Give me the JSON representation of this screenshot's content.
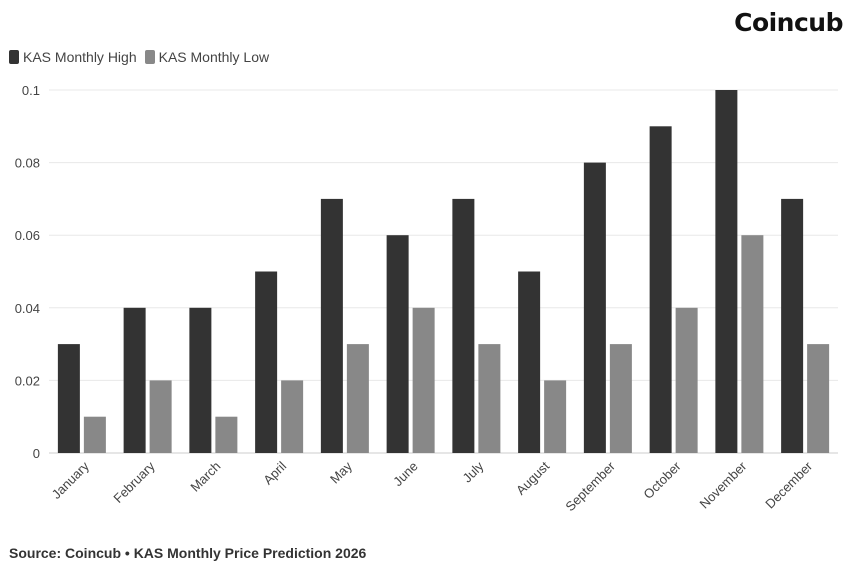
{
  "brand": "Coincub",
  "source_text": "Source: Coincub • KAS Monthly Price Prediction 2026",
  "chart_data": {
    "type": "bar",
    "title": "",
    "xlabel": "",
    "ylabel": "",
    "ylim": [
      0,
      0.1
    ],
    "y_ticks": [
      "0",
      "0.02",
      "0.04",
      "0.06",
      "0.08",
      "0.1"
    ],
    "y_tick_values": [
      0,
      0.02,
      0.04,
      0.06,
      0.08,
      0.1
    ],
    "grid": true,
    "legend_position": "top-left",
    "categories": [
      "January",
      "February",
      "March",
      "April",
      "May",
      "June",
      "July",
      "August",
      "September",
      "October",
      "November",
      "December"
    ],
    "series": [
      {
        "name": "KAS Monthly High",
        "color": "#333333",
        "values": [
          0.03,
          0.04,
          0.04,
          0.05,
          0.07,
          0.06,
          0.07,
          0.05,
          0.08,
          0.09,
          0.1,
          0.07
        ]
      },
      {
        "name": "KAS Monthly Low",
        "color": "#888888",
        "values": [
          0.01,
          0.02,
          0.01,
          0.02,
          0.03,
          0.04,
          0.03,
          0.02,
          0.03,
          0.04,
          0.06,
          0.03
        ]
      }
    ]
  }
}
